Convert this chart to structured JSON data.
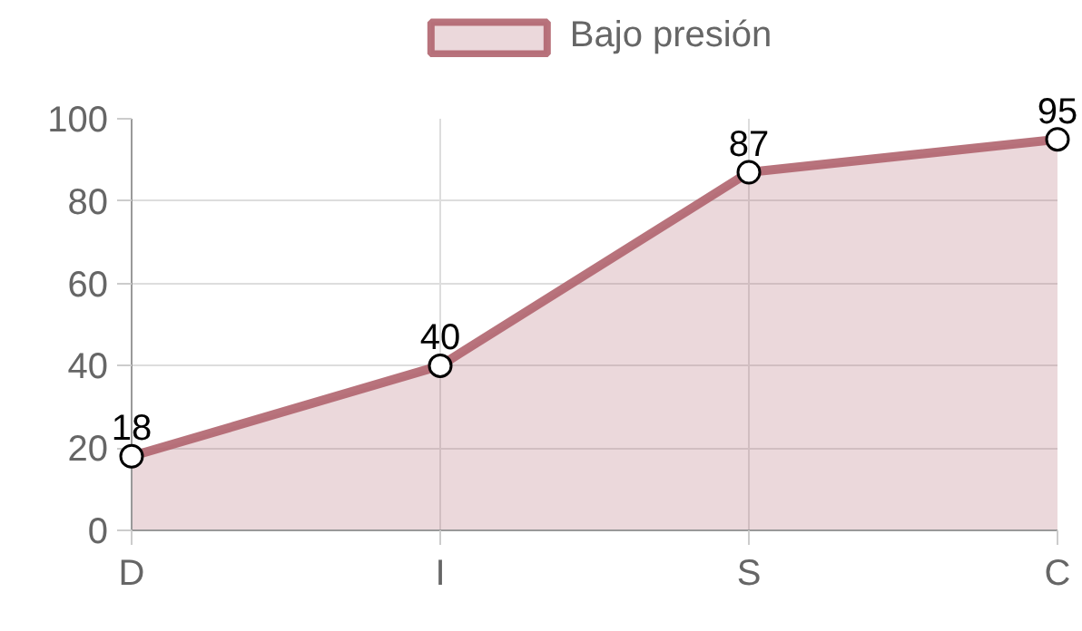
{
  "chart_data": {
    "type": "area",
    "categories": [
      "D",
      "I",
      "S",
      "C"
    ],
    "series": [
      {
        "name": "Bajo presión",
        "color": "#b0646e",
        "values": [
          18,
          40,
          87,
          95
        ]
      }
    ],
    "ylim": [
      0,
      100
    ],
    "yticks": [
      0,
      20,
      40,
      60,
      80,
      100
    ],
    "grid": true,
    "legend": "top",
    "marker": "circle",
    "data_labels": true
  }
}
